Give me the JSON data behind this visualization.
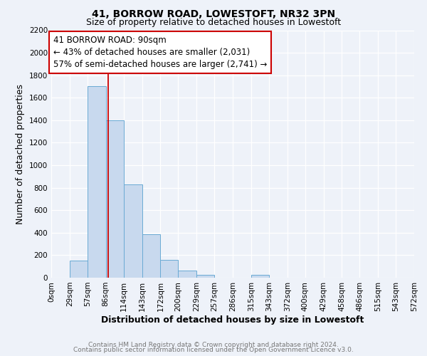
{
  "title": "41, BORROW ROAD, LOWESTOFT, NR32 3PN",
  "subtitle": "Size of property relative to detached houses in Lowestoft",
  "xlabel": "Distribution of detached houses by size in Lowestoft",
  "ylabel": "Number of detached properties",
  "bin_edges": [
    0,
    29,
    57,
    86,
    114,
    143,
    172,
    200,
    229,
    257,
    286,
    315,
    343,
    372,
    400,
    429,
    458,
    486,
    515,
    543,
    572
  ],
  "bin_heights": [
    0,
    155,
    1700,
    1400,
    830,
    385,
    160,
    65,
    25,
    0,
    0,
    25,
    0,
    0,
    0,
    0,
    0,
    0,
    0,
    0
  ],
  "bar_color": "#c8d9ee",
  "bar_edge_color": "#6aaad4",
  "vline_x": 90,
  "vline_color": "#cc0000",
  "annotation_line1": "41 BORROW ROAD: 90sqm",
  "annotation_line2": "← 43% of detached houses are smaller (2,031)",
  "annotation_line3": "57% of semi-detached houses are larger (2,741) →",
  "annotation_box_edgecolor": "#cc0000",
  "annotation_box_facecolor": "#ffffff",
  "ylim": [
    0,
    2200
  ],
  "yticks": [
    0,
    200,
    400,
    600,
    800,
    1000,
    1200,
    1400,
    1600,
    1800,
    2000,
    2200
  ],
  "xtick_labels": [
    "0sqm",
    "29sqm",
    "57sqm",
    "86sqm",
    "114sqm",
    "143sqm",
    "172sqm",
    "200sqm",
    "229sqm",
    "257sqm",
    "286sqm",
    "315sqm",
    "343sqm",
    "372sqm",
    "400sqm",
    "429sqm",
    "458sqm",
    "486sqm",
    "515sqm",
    "543sqm",
    "572sqm"
  ],
  "footer_line1": "Contains HM Land Registry data © Crown copyright and database right 2024.",
  "footer_line2": "Contains public sector information licensed under the Open Government Licence v3.0.",
  "background_color": "#eef2f9",
  "grid_color": "#ffffff",
  "title_fontsize": 10,
  "subtitle_fontsize": 9,
  "axis_label_fontsize": 9,
  "tick_fontsize": 7.5,
  "annotation_fontsize": 8.5,
  "footer_fontsize": 6.5
}
